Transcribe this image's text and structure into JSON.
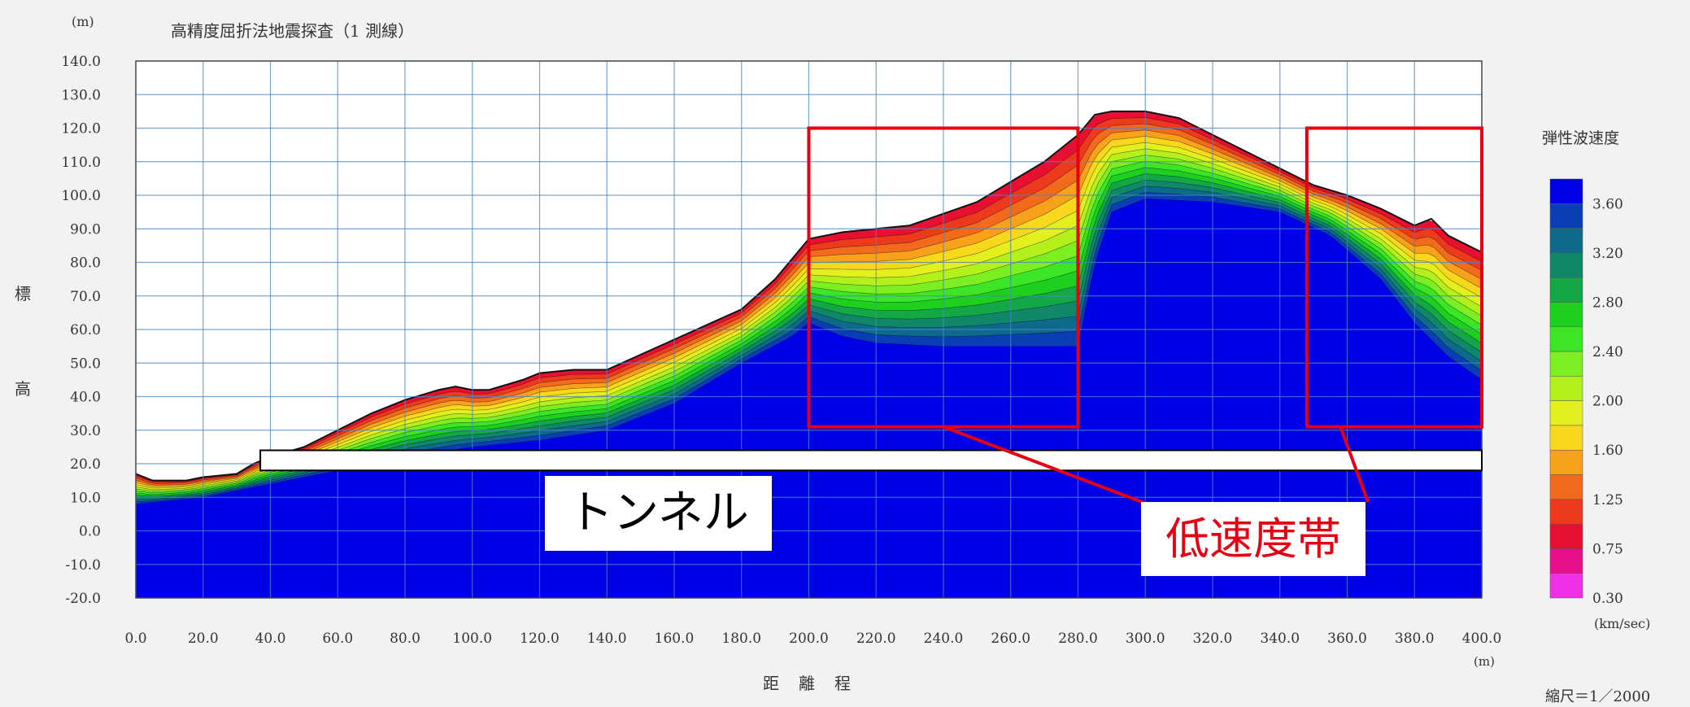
{
  "chart_data": {
    "type": "heatmap",
    "title": "高精度屈折法地震探査（1 測線）",
    "y_unit": "(m)",
    "ylabel": [
      "標",
      "高"
    ],
    "xlabel": [
      "距",
      "離",
      "程"
    ],
    "x_unit": "(m)",
    "scale_note": "縮尺＝1／2000",
    "xlim": [
      0,
      400
    ],
    "ylim": [
      -20,
      140
    ],
    "x_ticks": [
      "0.0",
      "20.0",
      "40.0",
      "60.0",
      "80.0",
      "100.0",
      "120.0",
      "140.0",
      "160.0",
      "180.0",
      "200.0",
      "220.0",
      "240.0",
      "260.0",
      "280.0",
      "300.0",
      "320.0",
      "340.0",
      "360.0",
      "380.0",
      "400.0"
    ],
    "y_ticks": [
      "140.0",
      "130.0",
      "120.0",
      "110.0",
      "100.0",
      "90.0",
      "80.0",
      "70.0",
      "60.0",
      "50.0",
      "40.0",
      "30.0",
      "20.0",
      "10.0",
      "0.0",
      "-10.0",
      "-20.0"
    ],
    "grid": true,
    "colorbar": {
      "title": "弾性波速度",
      "unit": "(km/sec)",
      "labels": [
        "3.60",
        "3.20",
        "2.80",
        "2.40",
        "2.00",
        "1.60",
        "1.25",
        "0.75",
        "0.30"
      ],
      "colors": [
        "#0000e6",
        "#0a3fb4",
        "#0e6a8a",
        "#11876a",
        "#13a845",
        "#1ed01e",
        "#3ce626",
        "#7cef22",
        "#b4f01c",
        "#e3f01e",
        "#f7d81c",
        "#f8a21c",
        "#f26a1c",
        "#ee3a1c",
        "#e81030",
        "#e8108a",
        "#f030e6"
      ]
    },
    "surface_profile": [
      [
        0,
        17
      ],
      [
        5,
        15
      ],
      [
        15,
        15
      ],
      [
        20,
        16
      ],
      [
        30,
        17
      ],
      [
        35,
        20
      ],
      [
        40,
        22
      ],
      [
        50,
        25
      ],
      [
        60,
        30
      ],
      [
        70,
        35
      ],
      [
        80,
        39
      ],
      [
        90,
        42
      ],
      [
        95,
        43
      ],
      [
        100,
        42
      ],
      [
        105,
        42
      ],
      [
        115,
        45
      ],
      [
        120,
        47
      ],
      [
        130,
        48
      ],
      [
        140,
        48
      ],
      [
        160,
        57
      ],
      [
        180,
        66
      ],
      [
        190,
        75
      ],
      [
        200,
        87
      ],
      [
        210,
        89
      ],
      [
        230,
        91
      ],
      [
        250,
        98
      ],
      [
        270,
        110
      ],
      [
        280,
        118
      ],
      [
        285,
        124
      ],
      [
        290,
        125
      ],
      [
        300,
        125
      ],
      [
        310,
        123
      ],
      [
        320,
        118
      ],
      [
        330,
        113
      ],
      [
        340,
        108
      ],
      [
        350,
        103
      ],
      [
        360,
        100
      ],
      [
        370,
        96
      ],
      [
        380,
        91
      ],
      [
        385,
        93
      ],
      [
        390,
        88
      ],
      [
        400,
        83
      ]
    ],
    "bedrock_profile": [
      [
        0,
        8
      ],
      [
        20,
        10
      ],
      [
        40,
        14
      ],
      [
        60,
        18
      ],
      [
        80,
        22
      ],
      [
        100,
        25
      ],
      [
        120,
        27
      ],
      [
        140,
        30
      ],
      [
        160,
        38
      ],
      [
        180,
        50
      ],
      [
        195,
        58
      ],
      [
        200,
        62
      ],
      [
        210,
        58
      ],
      [
        220,
        56
      ],
      [
        240,
        55
      ],
      [
        260,
        55
      ],
      [
        280,
        55
      ],
      [
        285,
        80
      ],
      [
        290,
        95
      ],
      [
        300,
        99
      ],
      [
        320,
        98
      ],
      [
        340,
        95
      ],
      [
        355,
        88
      ],
      [
        370,
        75
      ],
      [
        380,
        62
      ],
      [
        390,
        52
      ],
      [
        400,
        45
      ]
    ],
    "annotations": {
      "tunnel": {
        "label": "トンネル",
        "x": [
          37,
          400
        ],
        "y": [
          18,
          24
        ]
      },
      "low_velocity_zones": {
        "label": "低速度帯",
        "boxes": [
          {
            "x": [
              200,
              280
            ],
            "y": [
              31,
              120
            ]
          },
          {
            "x": [
              348,
              400
            ],
            "y": [
              31,
              120
            ]
          }
        ]
      }
    }
  }
}
